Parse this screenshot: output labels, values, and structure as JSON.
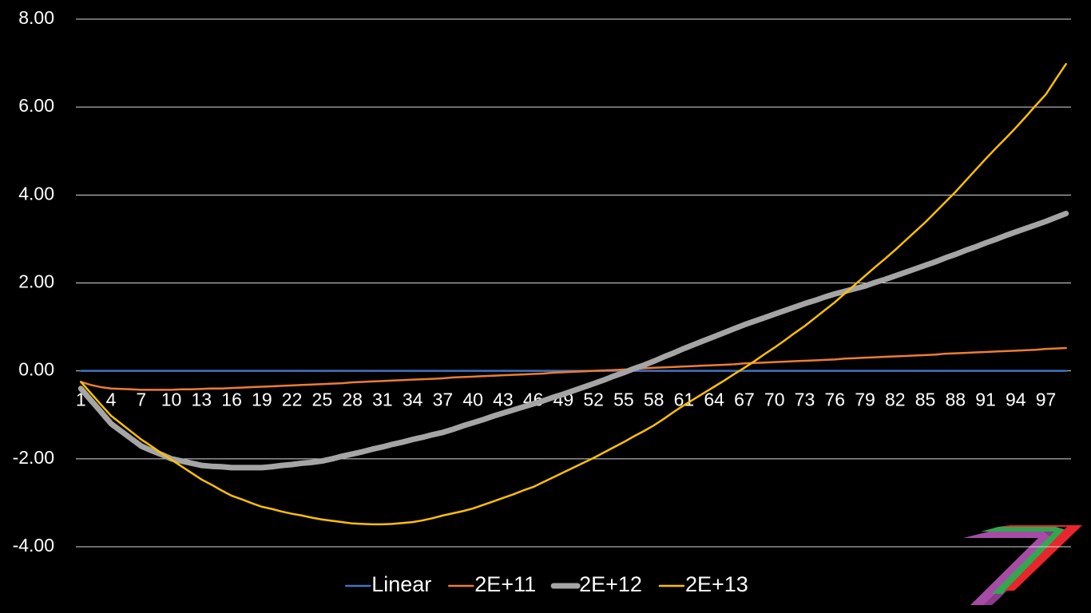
{
  "chart_data": {
    "type": "line",
    "categories": [
      "1",
      null,
      null,
      "4",
      null,
      null,
      "7",
      null,
      null,
      "10",
      null,
      null,
      "13",
      null,
      null,
      "16",
      null,
      null,
      "19",
      null,
      null,
      "22",
      null,
      null,
      "25",
      null,
      null,
      "28",
      null,
      null,
      "31",
      null,
      null,
      "34",
      null,
      null,
      "37",
      null,
      null,
      "40",
      null,
      null,
      "43",
      null,
      null,
      "46",
      null,
      null,
      "49",
      null,
      null,
      "52",
      null,
      null,
      "55",
      null,
      null,
      "58",
      null,
      null,
      "61",
      null,
      null,
      "64",
      null,
      null,
      "67",
      null,
      null,
      "70",
      null,
      null,
      "73",
      null,
      null,
      "76",
      null,
      null,
      "79",
      null,
      null,
      "82",
      null,
      null,
      "85",
      null,
      null,
      "88",
      null,
      null,
      "91",
      null,
      null,
      "94",
      null,
      null,
      "97",
      null,
      null
    ],
    "ylim": [
      -4,
      8
    ],
    "yticks": [
      {
        "value": -4,
        "label": "-4.00"
      },
      {
        "value": -2,
        "label": "-2.00"
      },
      {
        "value": 0,
        "label": "0.00"
      },
      {
        "value": 2,
        "label": "2.00"
      },
      {
        "value": 4,
        "label": "4.00"
      },
      {
        "value": 6,
        "label": "6.00"
      },
      {
        "value": 8,
        "label": "8.00"
      }
    ],
    "grid": true,
    "legend": "bottom",
    "series": [
      {
        "name": "Linear",
        "color": "#4472c4",
        "line_width": 2.5,
        "values": [
          0,
          0,
          0,
          0,
          0,
          0,
          0,
          0,
          0,
          0,
          0,
          0,
          0,
          0,
          0,
          0,
          0,
          0,
          0,
          0,
          0,
          0,
          0,
          0,
          0,
          0,
          0,
          0,
          0,
          0,
          0,
          0,
          0,
          0,
          0,
          0,
          0,
          0,
          0,
          0,
          0,
          0,
          0,
          0,
          0,
          0,
          0,
          0,
          0,
          0,
          0,
          0,
          0,
          0,
          0,
          0,
          0,
          0,
          0,
          0,
          0,
          0,
          0,
          0,
          0,
          0,
          0,
          0,
          0,
          0,
          0,
          0,
          0,
          0,
          0,
          0,
          0,
          0,
          0,
          0,
          0,
          0,
          0,
          0,
          0,
          0,
          0,
          0,
          0,
          0,
          0,
          0,
          0,
          0,
          0,
          0,
          0,
          0,
          0
        ]
      },
      {
        "name": "2E+11",
        "color": "#ed7d31",
        "line_width": 2.5,
        "values": [
          -0.25,
          -0.32,
          -0.37,
          -0.4,
          -0.41,
          -0.42,
          -0.43,
          -0.43,
          -0.43,
          -0.43,
          -0.42,
          -0.42,
          -0.41,
          -0.4,
          -0.4,
          -0.39,
          -0.38,
          -0.37,
          -0.36,
          -0.35,
          -0.34,
          -0.33,
          -0.32,
          -0.31,
          -0.3,
          -0.29,
          -0.28,
          -0.26,
          -0.25,
          -0.24,
          -0.23,
          -0.22,
          -0.21,
          -0.2,
          -0.19,
          -0.18,
          -0.17,
          -0.15,
          -0.14,
          -0.13,
          -0.12,
          -0.11,
          -0.1,
          -0.09,
          -0.08,
          -0.07,
          -0.06,
          -0.04,
          -0.03,
          -0.02,
          -0.01,
          0,
          0.01,
          0.02,
          0.03,
          0.04,
          0.06,
          0.07,
          0.08,
          0.09,
          0.1,
          0.11,
          0.12,
          0.13,
          0.14,
          0.15,
          0.17,
          0.18,
          0.19,
          0.2,
          0.21,
          0.22,
          0.23,
          0.24,
          0.25,
          0.26,
          0.28,
          0.29,
          0.3,
          0.31,
          0.32,
          0.33,
          0.34,
          0.35,
          0.36,
          0.37,
          0.39,
          0.4,
          0.41,
          0.42,
          0.43,
          0.44,
          0.45,
          0.46,
          0.47,
          0.48,
          0.5,
          0.51,
          0.52
        ]
      },
      {
        "name": "2E+12",
        "color": "#a5a5a5",
        "line_width": 7,
        "values": [
          -0.4,
          -0.67,
          -0.93,
          -1.2,
          -1.37,
          -1.54,
          -1.71,
          -1.81,
          -1.9,
          -2.0,
          -2.05,
          -2.1,
          -2.15,
          -2.17,
          -2.18,
          -2.2,
          -2.2,
          -2.2,
          -2.2,
          -2.18,
          -2.15,
          -2.13,
          -2.1,
          -2.08,
          -2.05,
          -2.0,
          -1.94,
          -1.89,
          -1.84,
          -1.78,
          -1.73,
          -1.67,
          -1.62,
          -1.56,
          -1.51,
          -1.45,
          -1.4,
          -1.33,
          -1.25,
          -1.18,
          -1.11,
          -1.03,
          -0.96,
          -0.89,
          -0.82,
          -0.75,
          -0.68,
          -0.6,
          -0.53,
          -0.45,
          -0.37,
          -0.29,
          -0.21,
          -0.12,
          -0.04,
          0.05,
          0.13,
          0.22,
          0.32,
          0.41,
          0.51,
          0.6,
          0.69,
          0.78,
          0.87,
          0.96,
          1.05,
          1.13,
          1.21,
          1.29,
          1.37,
          1.45,
          1.53,
          1.6,
          1.68,
          1.75,
          1.81,
          1.87,
          1.93,
          2.01,
          2.08,
          2.16,
          2.24,
          2.32,
          2.4,
          2.48,
          2.57,
          2.65,
          2.74,
          2.82,
          2.91,
          2.99,
          3.08,
          3.16,
          3.24,
          3.32,
          3.4,
          3.49,
          3.58
        ]
      },
      {
        "name": "2E+13",
        "color": "#ffc000",
        "line_width": 2.5,
        "values": [
          -0.25,
          -0.51,
          -0.77,
          -1.02,
          -1.2,
          -1.38,
          -1.56,
          -1.71,
          -1.87,
          -2.02,
          -2.17,
          -2.32,
          -2.47,
          -2.59,
          -2.72,
          -2.84,
          -2.92,
          -3.01,
          -3.09,
          -3.14,
          -3.2,
          -3.25,
          -3.29,
          -3.34,
          -3.38,
          -3.41,
          -3.44,
          -3.47,
          -3.48,
          -3.49,
          -3.49,
          -3.48,
          -3.46,
          -3.44,
          -3.4,
          -3.35,
          -3.29,
          -3.24,
          -3.19,
          -3.13,
          -3.05,
          -2.97,
          -2.89,
          -2.81,
          -2.72,
          -2.64,
          -2.53,
          -2.42,
          -2.31,
          -2.2,
          -2.09,
          -1.98,
          -1.86,
          -1.74,
          -1.62,
          -1.49,
          -1.37,
          -1.24,
          -1.09,
          -0.93,
          -0.78,
          -0.64,
          -0.5,
          -0.36,
          -0.22,
          -0.07,
          0.07,
          0.22,
          0.38,
          0.53,
          0.69,
          0.86,
          1.02,
          1.2,
          1.38,
          1.56,
          1.76,
          1.96,
          2.16,
          2.36,
          2.55,
          2.75,
          2.96,
          3.17,
          3.38,
          3.61,
          3.84,
          4.07,
          4.32,
          4.57,
          4.82,
          5.06,
          5.29,
          5.53,
          5.78,
          6.04,
          6.29,
          6.64,
          6.98
        ]
      }
    ]
  }
}
